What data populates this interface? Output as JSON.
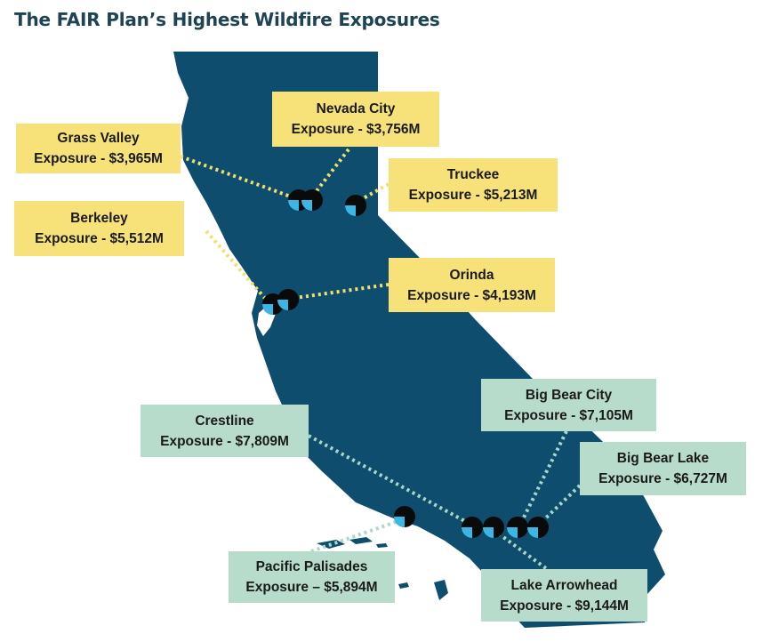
{
  "title": "The FAIR Plan’s Highest Wildfire Exposures",
  "colors": {
    "land": "#0e4d6d",
    "yellow_label": "#f7e27a",
    "green_label": "#b7dccb",
    "yellow_connector": "#f2e06a",
    "green_connector": "#a9d8c6",
    "marker_dark": "#0a0a0a",
    "marker_light": "#3ab7e6"
  },
  "locations": [
    {
      "id": "grass-valley",
      "name": "Grass Valley",
      "exposure": "Exposure - $3,965M",
      "color": "yellow"
    },
    {
      "id": "nevada-city",
      "name": "Nevada City",
      "exposure": "Exposure - $3,756M",
      "color": "yellow"
    },
    {
      "id": "truckee",
      "name": "Truckee",
      "exposure": "Exposure - $5,213M",
      "color": "yellow"
    },
    {
      "id": "berkeley",
      "name": "Berkeley",
      "exposure": "Exposure - $5,512M",
      "color": "yellow"
    },
    {
      "id": "orinda",
      "name": "Orinda",
      "exposure": "Exposure - $4,193M",
      "color": "yellow"
    },
    {
      "id": "big-bear-city",
      "name": "Big Bear City",
      "exposure": "Exposure - $7,105M",
      "color": "green"
    },
    {
      "id": "crestline",
      "name": "Crestline",
      "exposure": "Exposure - $7,809M",
      "color": "green"
    },
    {
      "id": "big-bear-lake",
      "name": "Big Bear Lake",
      "exposure": "Exposure - $6,727M",
      "color": "green"
    },
    {
      "id": "pacific-palisades",
      "name": "Pacific Palisades",
      "exposure": "Exposure – $5,894M",
      "color": "green"
    },
    {
      "id": "lake-arrowhead",
      "name": "Lake Arrowhead",
      "exposure": "Exposure - $9,144M",
      "color": "green"
    }
  ]
}
